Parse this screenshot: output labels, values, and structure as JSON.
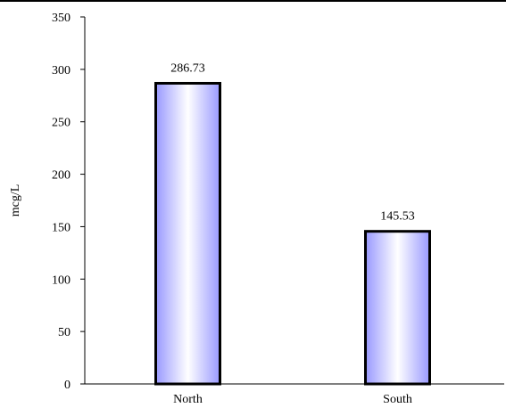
{
  "chart_data": {
    "type": "bar",
    "categories": [
      "North",
      "South"
    ],
    "values": [
      286.73,
      145.53
    ],
    "data_labels": [
      "286.73",
      "145.53"
    ],
    "title": "",
    "xlabel": "",
    "ylabel": "mcg/L",
    "ylim": [
      0,
      350
    ],
    "yticks": [
      0,
      50,
      100,
      150,
      200,
      250,
      300,
      350
    ],
    "grid": false,
    "legend": "none",
    "bar_fill_edge": "#9999ff",
    "bar_fill_center": "#ffffff",
    "bar_stroke": "#000000"
  }
}
